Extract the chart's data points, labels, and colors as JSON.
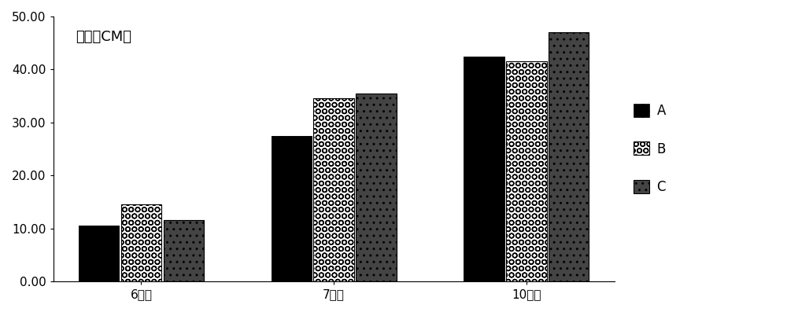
{
  "categories": [
    "6月份",
    "7月份",
    "10月份"
  ],
  "series": {
    "A": [
      10.5,
      27.5,
      42.5
    ],
    "B": [
      14.5,
      34.5,
      41.5
    ],
    "C": [
      11.5,
      35.5,
      47.0
    ]
  },
  "title": "株高（CM）",
  "ylim": [
    0,
    50
  ],
  "yticks": [
    0.0,
    10.0,
    20.0,
    30.0,
    40.0,
    50.0
  ],
  "ytick_labels": [
    "0.00",
    "10.00",
    "20.00",
    "30.00",
    "40.00",
    "50.00"
  ],
  "bar_width": 0.22,
  "legend_labels": [
    "A",
    "B",
    "C"
  ],
  "background_color": "#ffffff",
  "figsize": [
    10.0,
    3.97
  ],
  "dpi": 100,
  "title_fontsize": 13,
  "tick_fontsize": 11,
  "legend_fontsize": 12
}
